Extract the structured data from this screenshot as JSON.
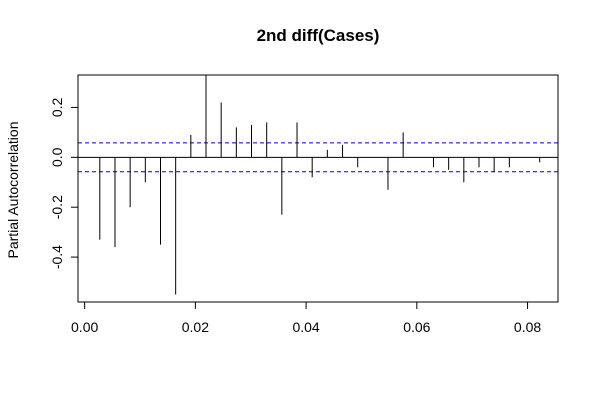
{
  "chart_data": {
    "type": "bar",
    "title": "2nd diff(Cases)",
    "xlabel": "",
    "ylabel": "Partial Autocorrelation",
    "xlim": [
      -0.0012,
      0.0855
    ],
    "ylim": [
      -0.58,
      0.33
    ],
    "x_ticks": [
      0.0,
      0.02,
      0.04,
      0.06,
      0.08
    ],
    "x_tick_labels": [
      "0.00",
      "0.02",
      "0.04",
      "0.06",
      "0.08"
    ],
    "y_ticks": [
      -0.4,
      -0.2,
      0.0,
      0.2
    ],
    "y_tick_labels": [
      "-0.4",
      "-0.2",
      "0.0",
      "0.2"
    ],
    "confidence_bounds": [
      0.058,
      -0.058
    ],
    "bound_color": "#0000cc",
    "grid": false,
    "x": [
      0.00274,
      0.00548,
      0.00822,
      0.01096,
      0.0137,
      0.01644,
      0.01918,
      0.02192,
      0.02466,
      0.0274,
      0.03014,
      0.03288,
      0.03562,
      0.03836,
      0.0411,
      0.04384,
      0.04658,
      0.04932,
      0.05205,
      0.05479,
      0.05753,
      0.06027,
      0.06301,
      0.06575,
      0.06849,
      0.07123,
      0.07397,
      0.07671,
      0.07945,
      0.08219
    ],
    "values": [
      -0.33,
      -0.36,
      -0.2,
      -0.1,
      -0.35,
      -0.55,
      0.09,
      0.33,
      0.22,
      0.12,
      0.13,
      0.14,
      -0.23,
      0.14,
      -0.08,
      0.03,
      0.05,
      -0.04,
      0.0,
      -0.13,
      0.1,
      0.0,
      -0.04,
      -0.05,
      -0.1,
      -0.04,
      -0.06,
      -0.04,
      0.0,
      -0.02
    ]
  }
}
